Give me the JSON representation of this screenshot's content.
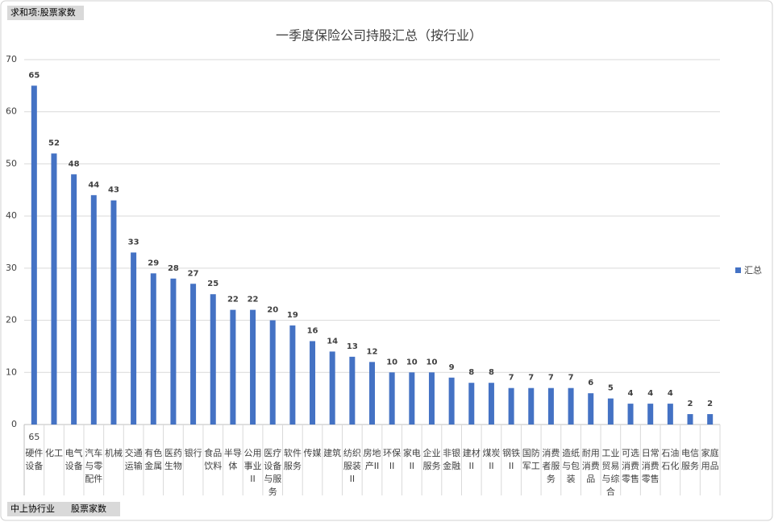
{
  "chart_data": {
    "type": "bar",
    "title": "一季度保险公司持股汇总（按行业）",
    "value_field_button": "求和项:股票家数",
    "row_field_buttons": [
      "中上协行业",
      "股票家数"
    ],
    "annotations": [
      "65"
    ],
    "categories": [
      "硬件设备",
      "化工",
      "电气设备",
      "汽车与零配件",
      "机械",
      "交通运输",
      "有色金属",
      "医药生物",
      "银行",
      "食品饮料",
      "半导体",
      "公用事业II",
      "医疗设备与服务",
      "软件服务",
      "传媒",
      "建筑",
      "纺织服装II",
      "房地产II",
      "环保II",
      "家电II",
      "企业服务",
      "非银金融",
      "建材II",
      "煤炭II",
      "钢铁II",
      "国防军工",
      "消费者服务",
      "造纸与包装",
      "耐用消费品",
      "工业贸易与综合",
      "可选消费零售",
      "日常消费零售",
      "石油石化",
      "电信服务",
      "家庭用品"
    ],
    "series": [
      {
        "name": "汇总",
        "color": "#4472c4",
        "values": [
          65,
          52,
          48,
          44,
          43,
          33,
          29,
          28,
          27,
          25,
          22,
          22,
          20,
          19,
          16,
          14,
          13,
          12,
          10,
          10,
          10,
          9,
          8,
          8,
          7,
          7,
          7,
          7,
          6,
          5,
          4,
          4,
          4,
          2,
          2
        ]
      }
    ],
    "ylim": [
      0,
      70
    ],
    "yticks": [
      0,
      10,
      20,
      30,
      40,
      50,
      60,
      70
    ],
    "grid": true,
    "legend": "right"
  }
}
